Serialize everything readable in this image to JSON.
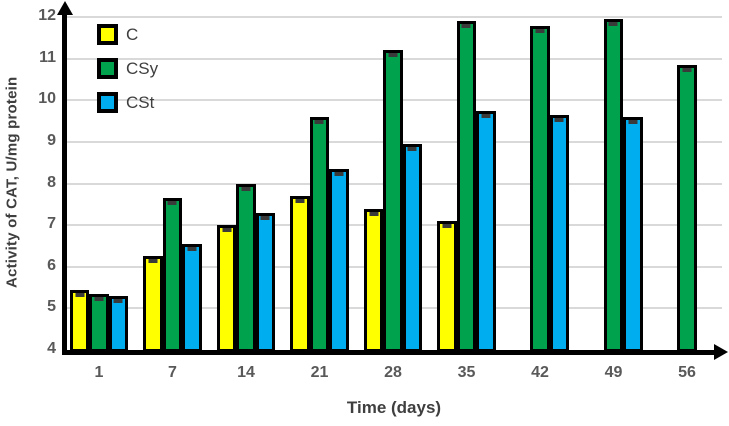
{
  "chart_data": {
    "type": "bar",
    "title": "",
    "xlabel": "Time (days)",
    "ylabel": "Activity of CAT, U/mg protein",
    "categories": [
      "1",
      "7",
      "14",
      "21",
      "28",
      "35",
      "42",
      "49",
      "56"
    ],
    "series": [
      {
        "name": "C",
        "color": "#FFFF00",
        "values": [
          5.45,
          6.25,
          7.0,
          7.7,
          7.4,
          7.1,
          null,
          null,
          null
        ]
      },
      {
        "name": "CSy",
        "color": "#00A24E",
        "values": [
          5.35,
          7.65,
          8.0,
          9.6,
          11.2,
          11.9,
          11.8,
          11.95,
          10.85
        ]
      },
      {
        "name": "CSt",
        "color": "#00AEEF",
        "values": [
          5.3,
          6.55,
          7.3,
          8.35,
          8.95,
          9.75,
          9.65,
          9.6,
          null
        ]
      }
    ],
    "ylim": [
      4,
      12
    ],
    "yticks": [
      4,
      5,
      6,
      7,
      8,
      9,
      10,
      11,
      12
    ],
    "grid": "horizontal-only",
    "legend_position": "top-left-inside",
    "error_bars": "small dark caps at bar tops",
    "bar_outline_color": "#000000",
    "gridline_color": "#D9D9D9",
    "tick_label_color": "#595959",
    "axis_title_color": "#3F3F3F"
  }
}
